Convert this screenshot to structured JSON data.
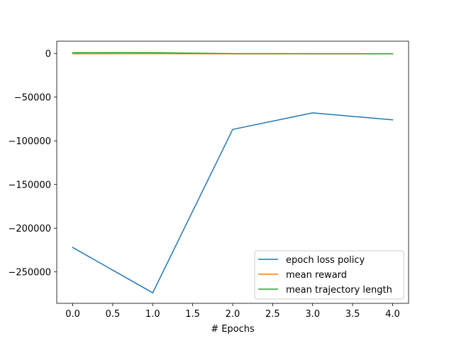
{
  "chart_data": {
    "type": "line",
    "title": "",
    "xlabel": "# Epochs",
    "ylabel": "",
    "x": [
      0,
      1,
      2,
      3,
      4
    ],
    "xlim": [
      -0.2,
      4.2
    ],
    "ylim": [
      -286000,
      14000
    ],
    "xticks": [
      0,
      0.5,
      1,
      1.5,
      2,
      2.5,
      3,
      3.5,
      4
    ],
    "xtick_labels": [
      "0.0",
      "0.5",
      "1.0",
      "1.5",
      "2.0",
      "2.5",
      "3.0",
      "3.5",
      "4.0"
    ],
    "yticks": [
      0,
      -50000,
      -100000,
      -150000,
      -200000,
      -250000
    ],
    "ytick_labels": [
      "0",
      "−50000",
      "−100000",
      "−150000",
      "−200000",
      "−250000"
    ],
    "grid": false,
    "legend_position": "lower-right",
    "series": [
      {
        "name": "epoch loss policy",
        "color": "#1f77b4",
        "values": [
          -222000,
          -274000,
          -87000,
          -68000,
          -76000
        ]
      },
      {
        "name": "mean reward",
        "color": "#ff7f0e",
        "values": [
          -300,
          -250,
          -400,
          -350,
          -400
        ]
      },
      {
        "name": "mean trajectory length",
        "color": "#2ca02c",
        "values": [
          800,
          900,
          -200,
          -300,
          -400
        ]
      }
    ]
  }
}
